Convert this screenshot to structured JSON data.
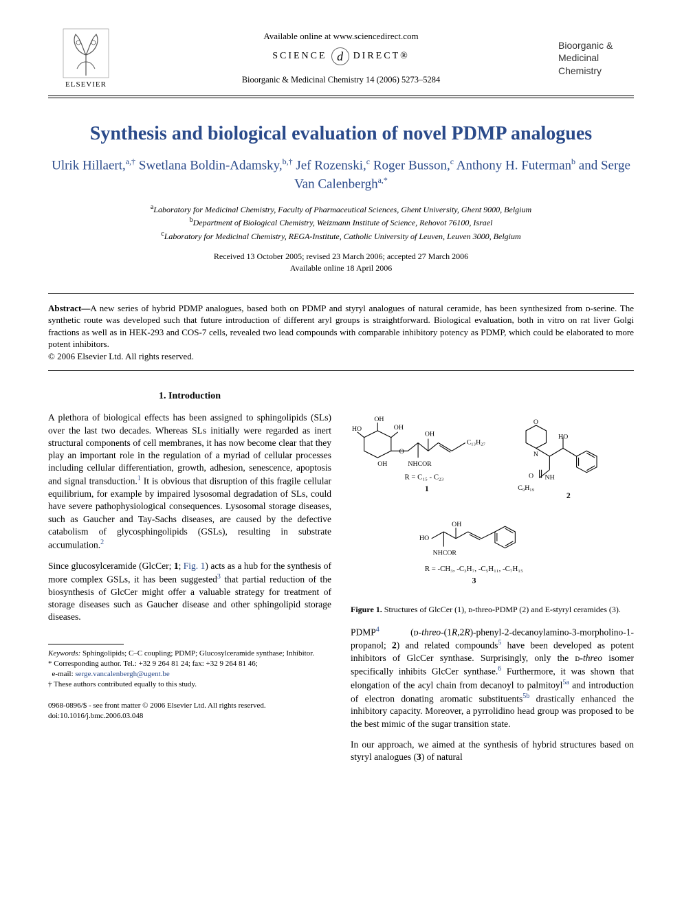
{
  "header": {
    "available_online": "Available online at www.sciencedirect.com",
    "sciencedirect_left": "SCIENCE",
    "sciencedirect_d": "d",
    "sciencedirect_right": "DIRECT®",
    "journal_ref": "Bioorganic & Medicinal Chemistry 14 (2006) 5273–5284",
    "elsevier_label": "ELSEVIER",
    "brand_line1": "Bioorganic &",
    "brand_line2": "Medicinal",
    "brand_line3": "Chemistry"
  },
  "title": "Synthesis and biological evaluation of novel PDMP analogues",
  "authors_html": "Ulrik Hillaert,<sup>a,†</sup> Swetlana Boldin-Adamsky,<sup>b,†</sup> Jef Rozenski,<sup>c</sup> Roger Busson,<sup>c</sup> Anthony H. Futerman<sup>b</sup> and Serge Van Calenbergh<sup>a,*</sup>",
  "affiliations": {
    "a": "Laboratory for Medicinal Chemistry, Faculty of Pharmaceutical Sciences, Ghent University, Ghent 9000, Belgium",
    "b": "Department of Biological Chemistry, Weizmann Institute of Science, Rehovot 76100, Israel",
    "c": "Laboratory for Medicinal Chemistry, REGA-Institute, Catholic University of Leuven, Leuven 3000, Belgium"
  },
  "dates": {
    "line1": "Received 13 October 2005; revised 23 March 2006; accepted 27 March 2006",
    "line2": "Available online 18 April 2006"
  },
  "abstract": {
    "label": "Abstract—",
    "text": "A new series of hybrid PDMP analogues, based both on PDMP and styryl analogues of natural ceramide, has been synthesized from ᴅ-serine. The synthetic route was developed such that future introduction of different aryl groups is straightforward. Biological evaluation, both in vitro on rat liver Golgi fractions as well as in HEK-293 and COS-7 cells, revealed two lead compounds with comparable inhibitory potency as PDMP, which could be elaborated to more potent inhibitors.",
    "copyright": "© 2006 Elsevier Ltd. All rights reserved."
  },
  "section1_heading": "1. Introduction",
  "para1": "A plethora of biological effects has been assigned to sphingolipids (SLs) over the last two decades. Whereas SLs initially were regarded as inert structural components of cell membranes, it has now become clear that they play an important role in the regulation of a myriad of cellular processes including cellular differentiation, growth, adhesion, senescence, apoptosis and signal transduction.<sup>1</sup> It is obvious that disruption of this fragile cellular equilibrium, for example by impaired lysosomal degradation of SLs, could have severe pathophysiological consequences. Lysosomal storage diseases, such as Gaucher and Tay-Sachs diseases, are caused by the defective catabolism of glycosphingolipids (GSLs), resulting in substrate accumulation.<sup>2</sup>",
  "para2": "Since glucosylceramide (GlcCer; <b>1</b>; <span class=\"fig-link\">Fig. 1</span>) acts as a hub for the synthesis of more complex GSLs, it has been suggested<sup>3</sup> that partial reduction of the biosynthesis of GlcCer might offer a valuable strategy for treatment of storage diseases such as Gaucher disease and other sphingolipid storage diseases.",
  "figure1": {
    "struct1_labels": {
      "r": "R = C₁₅ - C₂₃",
      "num": "1",
      "chain": "C₁₃H₂₇",
      "nhcor": "NHCOR",
      "oh": "OH"
    },
    "struct2_labels": {
      "num": "2",
      "chain": "C₉H₁₉",
      "nh": "NH",
      "o": "O",
      "ho": "HO"
    },
    "struct3_labels": {
      "num": "3",
      "r": "R = -CH₃, -C₃H₇, -C₅H₁₁, -C₇H₁₅",
      "nhcor": "NHCOR",
      "oh": "OH",
      "ho": "HO"
    },
    "caption_lead": "Figure 1.",
    "caption_text": " Structures of GlcCer (1), ᴅ-threo-PDMP (2) and E-styryl ceramides (3)."
  },
  "para3": "PDMP<sup>4</sup> (ᴅ-<i>threo</i>-(1<i>R</i>,2<i>R</i>)-phenyl-2-decanoylamino-3-morpholino-1-propanol; <b>2</b>) and related compounds<sup>5</sup> have been developed as potent inhibitors of GlcCer synthase. Surprisingly, only the ᴅ-<i>threo</i> isomer specifically inhibits GlcCer synthase.<sup>6</sup> Furthermore, it was shown that elongation of the acyl chain from decanoyl to palmitoyl<sup>5a</sup> and introduction of electron donating aromatic substituents<sup>5b</sup> drastically enhanced the inhibitory capacity. Moreover, a pyrrolidino head group was proposed to be the best mimic of the sugar transition state.",
  "para4": "In our approach, we aimed at the synthesis of hybrid structures based on styryl analogues (<b>3</b>) of natural",
  "footnotes": {
    "keywords_label": "Keywords:",
    "keywords": " Sphingolipids; C–C coupling; PDMP; Glucosylceramide synthase; Inhibitor.",
    "corr_label": "* Corresponding author. ",
    "corr_text": "Tel.: +32 9 264 81 24; fax: +32 9 264 81 46;",
    "email_label": "e-mail: ",
    "email": "serge.vancalenbergh@ugent.be",
    "equal": "† These authors contributed equally to this study."
  },
  "doi": {
    "line1": "0968-0896/$ - see front matter © 2006 Elsevier Ltd. All rights reserved.",
    "line2": "doi:10.1016/j.bmc.2006.03.048"
  },
  "colors": {
    "title_color": "#2a4a8a",
    "link_color": "#2a4a8a",
    "text_color": "#000000",
    "background": "#ffffff"
  }
}
